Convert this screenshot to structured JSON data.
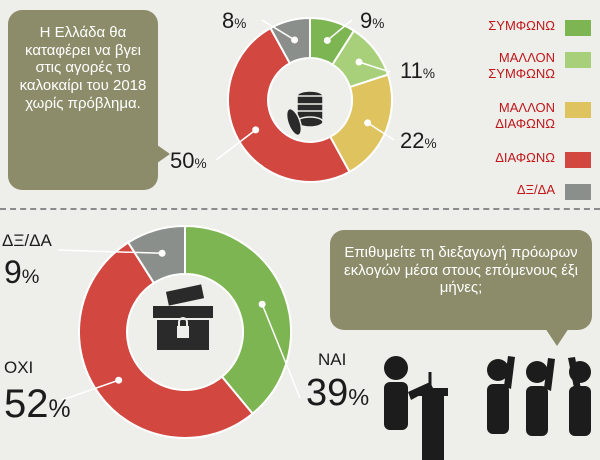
{
  "chart_data": [
    {
      "type": "pie",
      "title": "Η Ελλάδα θα καταφέρει να βγει στις αγορές το καλοκαίρι του 2018 χωρίς πρόβλημα.",
      "categories": [
        "ΣΥΜΦΩΝΩ",
        "ΜΑΛΛΟΝ ΣΥΜΦΩΝΩ",
        "ΜΑΛΛΟΝ ΔΙΑΦΩΝΩ",
        "ΔΙΑΦΩΝΩ",
        "ΔΞ/ΔΑ"
      ],
      "values": [
        9,
        11,
        22,
        50,
        8
      ],
      "labels": [
        "9",
        "11",
        "22",
        "50",
        "8"
      ],
      "colors": [
        "#7db552",
        "#a8cf7a",
        "#dfc35f",
        "#d2473f",
        "#8b8f8b"
      ],
      "legend_labels": [
        "ΣΥΜΦΩΝΩ",
        "ΜΑΛΛΟΝ\nΣΥΜΦΩΝΩ",
        "ΜΑΛΛΟΝ\nΔΙΑΦΩΝΩ",
        "ΔΙΑΦΩΝΩ",
        "ΔΞ/ΔΑ"
      ],
      "legend": "right"
    },
    {
      "type": "pie",
      "title": "Επιθυμείτε τη διεξαγωγή πρόωρων εκλογών μέσα στους επόμενους έξι μήνες;",
      "categories": [
        "ΝΑΙ",
        "ΟΧΙ",
        "ΔΞ/ΔΑ"
      ],
      "values": [
        39,
        52,
        9
      ],
      "labels": [
        "39",
        "52",
        "9"
      ],
      "colors": [
        "#7db552",
        "#d2473f",
        "#8b8f8b"
      ]
    }
  ],
  "percent_sign": "%",
  "bubble_colors": {
    "q1": "#8d8c6a",
    "q2": "#8d8c6a"
  },
  "legend_text_color": "#c0171b"
}
